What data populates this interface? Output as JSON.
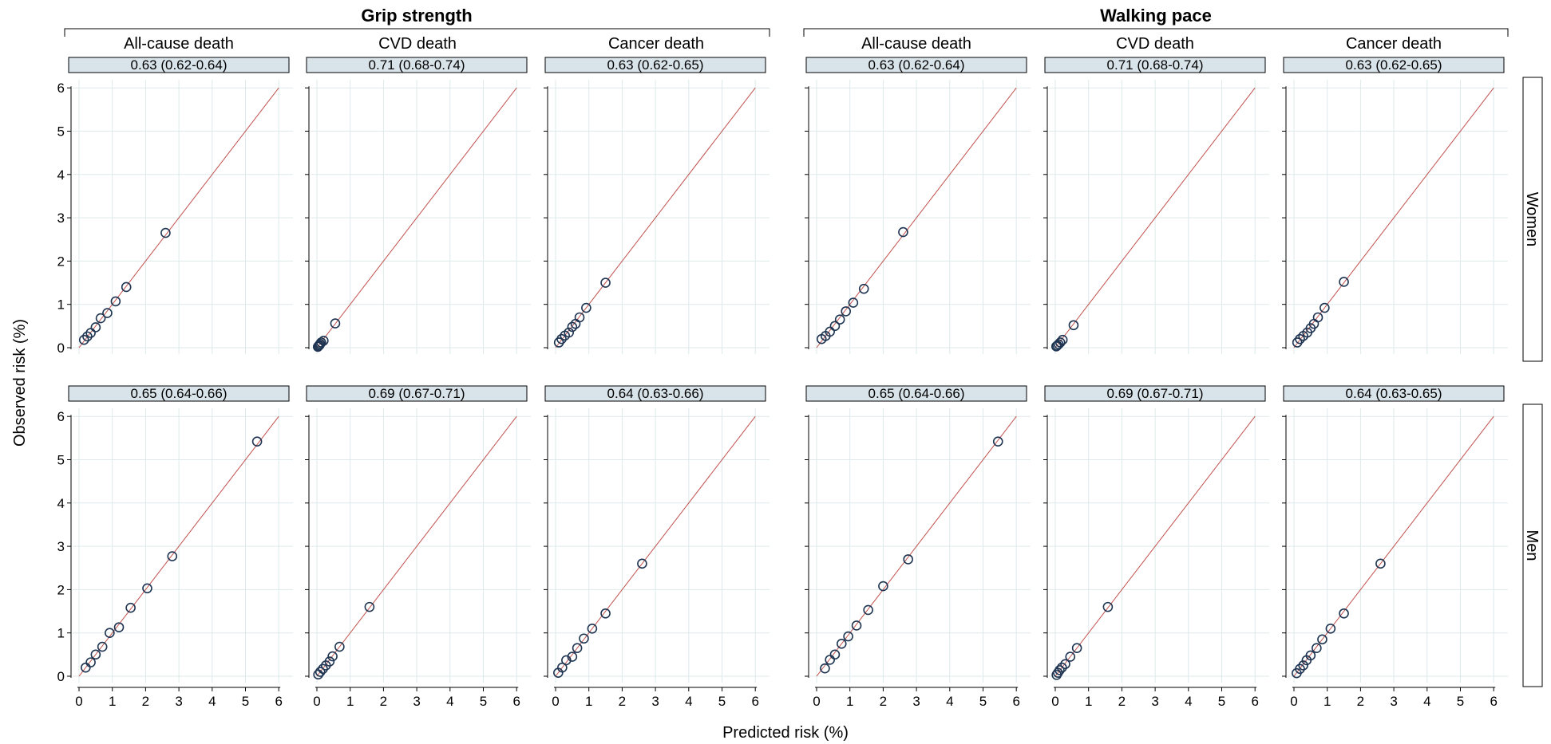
{
  "x_axis_label": "Predicted risk (%)",
  "y_axis_label": "Observed risk (%)",
  "group_titles": [
    "Grip strength",
    "Walking pace"
  ],
  "column_titles": [
    "All-cause death",
    "CVD death",
    "Cancer death"
  ],
  "row_labels": [
    "Women",
    "Men"
  ],
  "colors": {
    "point_stroke": "#1f3552",
    "identity_line": "#c0504d",
    "grid": "#dde9ea",
    "strip_fill": "#d9e4ea",
    "strip_stroke": "#000000",
    "axis": "#000000"
  },
  "chart_data": {
    "type": "scatter",
    "xlim": [
      0,
      6
    ],
    "ylim": [
      0,
      6
    ],
    "ticks": [
      0,
      1,
      2,
      3,
      4,
      5,
      6
    ],
    "grid": true,
    "reference_line": "y = x",
    "panels": [
      {
        "group": "Grip strength",
        "column": "All-cause death",
        "row": "Women",
        "c_statistic": "0.63 (0.62-0.64)",
        "points": [
          [
            0.15,
            0.18
          ],
          [
            0.25,
            0.26
          ],
          [
            0.35,
            0.34
          ],
          [
            0.5,
            0.47
          ],
          [
            0.65,
            0.68
          ],
          [
            0.85,
            0.8
          ],
          [
            1.1,
            1.07
          ],
          [
            1.42,
            1.4
          ],
          [
            2.6,
            2.65
          ]
        ]
      },
      {
        "group": "Grip strength",
        "column": "CVD death",
        "row": "Women",
        "c_statistic": "0.71 (0.68-0.74)",
        "points": [
          [
            0.03,
            0.02
          ],
          [
            0.05,
            0.04
          ],
          [
            0.08,
            0.06
          ],
          [
            0.1,
            0.09
          ],
          [
            0.13,
            0.12
          ],
          [
            0.2,
            0.16
          ],
          [
            0.55,
            0.56
          ]
        ]
      },
      {
        "group": "Grip strength",
        "column": "Cancer death",
        "row": "Women",
        "c_statistic": "0.63 (0.62-0.65)",
        "points": [
          [
            0.1,
            0.12
          ],
          [
            0.18,
            0.2
          ],
          [
            0.28,
            0.28
          ],
          [
            0.4,
            0.35
          ],
          [
            0.5,
            0.48
          ],
          [
            0.6,
            0.55
          ],
          [
            0.72,
            0.7
          ],
          [
            0.92,
            0.92
          ],
          [
            1.5,
            1.5
          ]
        ]
      },
      {
        "group": "Walking pace",
        "column": "All-cause death",
        "row": "Women",
        "c_statistic": "0.63 (0.62-0.64)",
        "points": [
          [
            0.15,
            0.2
          ],
          [
            0.27,
            0.27
          ],
          [
            0.4,
            0.37
          ],
          [
            0.55,
            0.5
          ],
          [
            0.7,
            0.65
          ],
          [
            0.88,
            0.84
          ],
          [
            1.1,
            1.04
          ],
          [
            1.42,
            1.36
          ],
          [
            2.6,
            2.67
          ]
        ]
      },
      {
        "group": "Walking pace",
        "column": "CVD death",
        "row": "Women",
        "c_statistic": "0.71 (0.68-0.74)",
        "points": [
          [
            0.03,
            0.03
          ],
          [
            0.06,
            0.05
          ],
          [
            0.1,
            0.08
          ],
          [
            0.15,
            0.12
          ],
          [
            0.22,
            0.18
          ],
          [
            0.55,
            0.52
          ]
        ]
      },
      {
        "group": "Walking pace",
        "column": "Cancer death",
        "row": "Women",
        "c_statistic": "0.63 (0.62-0.65)",
        "points": [
          [
            0.1,
            0.12
          ],
          [
            0.18,
            0.2
          ],
          [
            0.28,
            0.27
          ],
          [
            0.4,
            0.35
          ],
          [
            0.5,
            0.45
          ],
          [
            0.6,
            0.55
          ],
          [
            0.72,
            0.7
          ],
          [
            0.92,
            0.92
          ],
          [
            1.5,
            1.52
          ]
        ]
      },
      {
        "group": "Grip strength",
        "column": "All-cause death",
        "row": "Men",
        "c_statistic": "0.65 (0.64-0.66)",
        "points": [
          [
            0.2,
            0.2
          ],
          [
            0.35,
            0.32
          ],
          [
            0.5,
            0.5
          ],
          [
            0.7,
            0.68
          ],
          [
            0.92,
            1.0
          ],
          [
            1.2,
            1.13
          ],
          [
            1.55,
            1.58
          ],
          [
            2.05,
            2.03
          ],
          [
            2.8,
            2.77
          ],
          [
            5.35,
            5.42
          ]
        ]
      },
      {
        "group": "Grip strength",
        "column": "CVD death",
        "row": "Men",
        "c_statistic": "0.69 (0.67-0.71)",
        "points": [
          [
            0.04,
            0.04
          ],
          [
            0.1,
            0.1
          ],
          [
            0.18,
            0.17
          ],
          [
            0.27,
            0.25
          ],
          [
            0.38,
            0.34
          ],
          [
            0.47,
            0.46
          ],
          [
            0.68,
            0.68
          ],
          [
            1.58,
            1.6
          ]
        ]
      },
      {
        "group": "Grip strength",
        "column": "Cancer death",
        "row": "Men",
        "c_statistic": "0.64 (0.63-0.66)",
        "points": [
          [
            0.08,
            0.08
          ],
          [
            0.2,
            0.2
          ],
          [
            0.32,
            0.37
          ],
          [
            0.5,
            0.45
          ],
          [
            0.65,
            0.65
          ],
          [
            0.85,
            0.87
          ],
          [
            1.1,
            1.1
          ],
          [
            1.5,
            1.45
          ],
          [
            2.6,
            2.6
          ]
        ]
      },
      {
        "group": "Walking pace",
        "column": "All-cause death",
        "row": "Men",
        "c_statistic": "0.65 (0.64-0.66)",
        "points": [
          [
            0.25,
            0.18
          ],
          [
            0.4,
            0.38
          ],
          [
            0.55,
            0.5
          ],
          [
            0.75,
            0.75
          ],
          [
            0.95,
            0.92
          ],
          [
            1.2,
            1.17
          ],
          [
            1.55,
            1.53
          ],
          [
            2.0,
            2.08
          ],
          [
            2.75,
            2.7
          ],
          [
            5.45,
            5.42
          ]
        ]
      },
      {
        "group": "Walking pace",
        "column": "CVD death",
        "row": "Men",
        "c_statistic": "0.69 (0.67-0.71)",
        "points": [
          [
            0.04,
            0.03
          ],
          [
            0.08,
            0.08
          ],
          [
            0.13,
            0.14
          ],
          [
            0.2,
            0.2
          ],
          [
            0.3,
            0.28
          ],
          [
            0.45,
            0.45
          ],
          [
            0.65,
            0.65
          ],
          [
            1.58,
            1.6
          ]
        ]
      },
      {
        "group": "Walking pace",
        "column": "Cancer death",
        "row": "Men",
        "c_statistic": "0.64 (0.63-0.65)",
        "points": [
          [
            0.08,
            0.07
          ],
          [
            0.18,
            0.17
          ],
          [
            0.28,
            0.25
          ],
          [
            0.38,
            0.37
          ],
          [
            0.5,
            0.48
          ],
          [
            0.68,
            0.65
          ],
          [
            0.85,
            0.85
          ],
          [
            1.1,
            1.1
          ],
          [
            1.5,
            1.45
          ],
          [
            2.6,
            2.6
          ]
        ]
      }
    ]
  }
}
